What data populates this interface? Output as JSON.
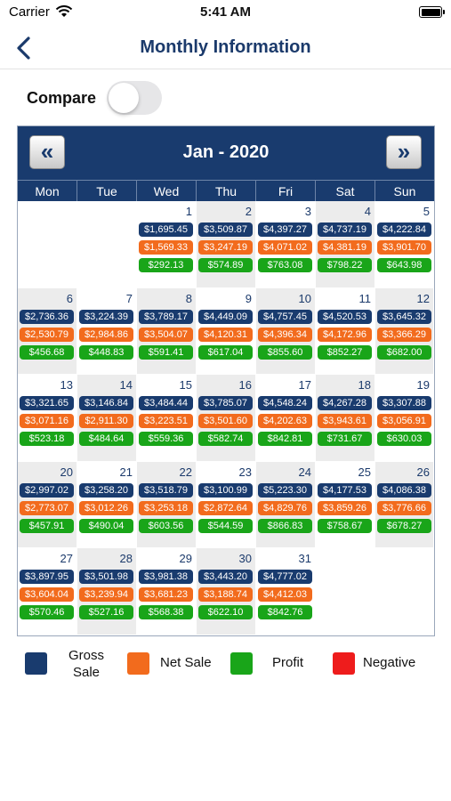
{
  "status_bar": {
    "carrier": "Carrier",
    "time": "5:41 AM"
  },
  "nav": {
    "title": "Monthly Information"
  },
  "compare": {
    "label": "Compare",
    "enabled": false
  },
  "calendar": {
    "month_title": "Jan - 2020",
    "prev_label": "«",
    "next_label": "»",
    "weekdays": [
      "Mon",
      "Tue",
      "Wed",
      "Thu",
      "Fri",
      "Sat",
      "Sun"
    ],
    "first_weekday_offset": 2,
    "days": [
      {
        "day": "1",
        "gross": "$1,695.45",
        "net": "$1,569.33",
        "profit": "$292.13"
      },
      {
        "day": "2",
        "gross": "$3,509.87",
        "net": "$3,247.19",
        "profit": "$574.89"
      },
      {
        "day": "3",
        "gross": "$4,397.27",
        "net": "$4,071.02",
        "profit": "$763.08"
      },
      {
        "day": "4",
        "gross": "$4,737.19",
        "net": "$4,381.19",
        "profit": "$798.22"
      },
      {
        "day": "5",
        "gross": "$4,222.84",
        "net": "$3,901.70",
        "profit": "$643.98"
      },
      {
        "day": "6",
        "gross": "$2,736.36",
        "net": "$2,530.79",
        "profit": "$456.68"
      },
      {
        "day": "7",
        "gross": "$3,224.39",
        "net": "$2,984.86",
        "profit": "$448.83"
      },
      {
        "day": "8",
        "gross": "$3,789.17",
        "net": "$3,504.07",
        "profit": "$591.41"
      },
      {
        "day": "9",
        "gross": "$4,449.09",
        "net": "$4,120.31",
        "profit": "$617.04"
      },
      {
        "day": "10",
        "gross": "$4,757.45",
        "net": "$4,396.34",
        "profit": "$855.60"
      },
      {
        "day": "11",
        "gross": "$4,520.53",
        "net": "$4,172.96",
        "profit": "$852.27"
      },
      {
        "day": "12",
        "gross": "$3,645.32",
        "net": "$3,366.29",
        "profit": "$682.00"
      },
      {
        "day": "13",
        "gross": "$3,321.65",
        "net": "$3,071.16",
        "profit": "$523.18"
      },
      {
        "day": "14",
        "gross": "$3,146.84",
        "net": "$2,911.30",
        "profit": "$484.64"
      },
      {
        "day": "15",
        "gross": "$3,484.44",
        "net": "$3,223.51",
        "profit": "$559.36"
      },
      {
        "day": "16",
        "gross": "$3,785.07",
        "net": "$3,501.60",
        "profit": "$582.74"
      },
      {
        "day": "17",
        "gross": "$4,548.24",
        "net": "$4,202.63",
        "profit": "$842.81"
      },
      {
        "day": "18",
        "gross": "$4,267.28",
        "net": "$3,943.61",
        "profit": "$731.67"
      },
      {
        "day": "19",
        "gross": "$3,307.88",
        "net": "$3,056.91",
        "profit": "$630.03"
      },
      {
        "day": "20",
        "gross": "$2,997.02",
        "net": "$2,773.07",
        "profit": "$457.91"
      },
      {
        "day": "21",
        "gross": "$3,258.20",
        "net": "$3,012.26",
        "profit": "$490.04"
      },
      {
        "day": "22",
        "gross": "$3,518.79",
        "net": "$3,253.18",
        "profit": "$603.56"
      },
      {
        "day": "23",
        "gross": "$3,100.99",
        "net": "$2,872.64",
        "profit": "$544.59"
      },
      {
        "day": "24",
        "gross": "$5,223.30",
        "net": "$4,829.76",
        "profit": "$866.83"
      },
      {
        "day": "25",
        "gross": "$4,177.53",
        "net": "$3,859.26",
        "profit": "$758.67"
      },
      {
        "day": "26",
        "gross": "$4,086.38",
        "net": "$3,776.66",
        "profit": "$678.27"
      },
      {
        "day": "27",
        "gross": "$3,897.95",
        "net": "$3,604.04",
        "profit": "$570.46"
      },
      {
        "day": "28",
        "gross": "$3,501.98",
        "net": "$3,239.94",
        "profit": "$527.16"
      },
      {
        "day": "29",
        "gross": "$3,981.38",
        "net": "$3,681.23",
        "profit": "$568.38"
      },
      {
        "day": "30",
        "gross": "$3,443.20",
        "net": "$3,188.74",
        "profit": "$622.10"
      },
      {
        "day": "31",
        "gross": "$4,777.02",
        "net": "$4,412.03",
        "profit": "$842.76"
      }
    ]
  },
  "legend": {
    "gross": {
      "line1": "Gross",
      "line2": "Sale",
      "color": "#193b6e"
    },
    "net": {
      "label": "Net Sale",
      "color": "#f26b1d"
    },
    "profit": {
      "label": "Profit",
      "color": "#19a519"
    },
    "negative": {
      "label": "Negative",
      "color": "#ee1c1c"
    }
  }
}
